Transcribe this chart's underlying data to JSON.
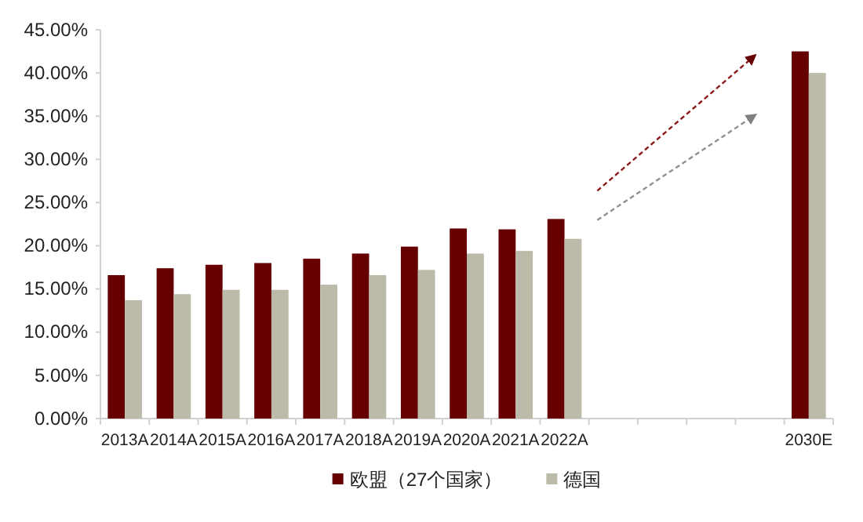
{
  "chart_data": {
    "type": "bar",
    "categories": [
      "2013A",
      "2014A",
      "2015A",
      "2016A",
      "2017A",
      "2018A",
      "2019A",
      "2020A",
      "2021A",
      "2022A",
      null,
      null,
      null,
      null,
      "2030E"
    ],
    "series": [
      {
        "name": "欧盟（27个国家）",
        "color": "#660000",
        "values": [
          16.6,
          17.4,
          17.8,
          18.0,
          18.5,
          19.1,
          19.9,
          22.0,
          21.9,
          23.1,
          null,
          null,
          null,
          null,
          42.5
        ]
      },
      {
        "name": "德国",
        "color": "#bcbaa8",
        "values": [
          13.7,
          14.4,
          14.9,
          14.9,
          15.5,
          16.6,
          17.2,
          19.1,
          19.4,
          20.8,
          null,
          null,
          null,
          null,
          40.0
        ]
      }
    ],
    "ylim": [
      0,
      45
    ],
    "yticks": [
      {
        "value": 0,
        "label": "0.00%"
      },
      {
        "value": 5,
        "label": "5.00%"
      },
      {
        "value": 10,
        "label": "10.00%"
      },
      {
        "value": 15,
        "label": "15.00%"
      },
      {
        "value": 20,
        "label": "20.00%"
      },
      {
        "value": 25,
        "label": "25.00%"
      },
      {
        "value": 30,
        "label": "30.00%"
      },
      {
        "value": 35,
        "label": "35.00%"
      },
      {
        "value": 40,
        "label": "40.00%"
      },
      {
        "value": 45,
        "label": "45.00%"
      }
    ],
    "legend": "bottom"
  }
}
